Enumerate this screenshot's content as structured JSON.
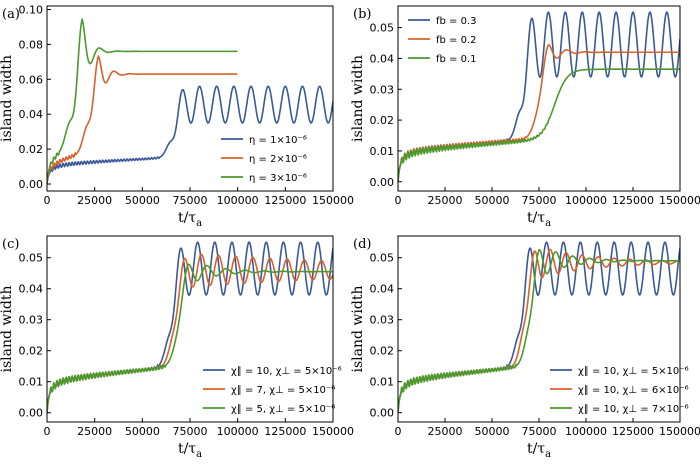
{
  "colors": {
    "blue": "#3b5998",
    "orange": "#d9622b",
    "green": "#4a9a2c"
  },
  "chart_data": [
    {
      "panel": "(a)",
      "type": "line",
      "xlabel": "t/τa",
      "ylabel": "island width",
      "xlim": [
        0,
        150000
      ],
      "ylim": [
        -0.004,
        0.102
      ],
      "xticks": [
        "0",
        "25000",
        "50000",
        "75000",
        "100000",
        "125000",
        "150000"
      ],
      "yticks": [
        "0.00",
        "0.02",
        "0.04",
        "0.06",
        "0.08",
        "0.10"
      ],
      "legend_position": "bottom-right",
      "series": [
        {
          "name": "η = 1×10⁻⁶",
          "color": "blue",
          "type": "sat_osc",
          "osc_start": 5000,
          "t_up": 71000,
          "sat": 0.0455,
          "amp": 0.0105,
          "period": 9000,
          "w0": 0.0118,
          "slope": 5.5e-08,
          "t_end": 150000
        },
        {
          "name": "η = 2×10⁻⁶",
          "color": "orange",
          "type": "sat_damped",
          "osc_start": 3000,
          "t_up": 27000,
          "sat": 0.063,
          "amp": 0.013,
          "period": 8500,
          "decay": 4000,
          "w0": 0.013,
          "slope": 2.8e-07,
          "t_end": 100000
        },
        {
          "name": "η = 3×10⁻⁶",
          "color": "green",
          "type": "sat_damped",
          "osc_start": 2000,
          "t_up": 18500,
          "sat": 0.076,
          "amp": 0.022,
          "period": 9500,
          "decay": 3800,
          "w0": 0.016,
          "slope": 6e-07,
          "t_end": 100000
        }
      ]
    },
    {
      "panel": "(b)",
      "type": "line",
      "xlabel": "t/τa",
      "ylabel": "island width",
      "xlim": [
        0,
        150000
      ],
      "ylim": [
        -0.003,
        0.057
      ],
      "xticks": [
        "0",
        "25000",
        "50000",
        "75000",
        "100000",
        "125000",
        "150000"
      ],
      "yticks": [
        "0.00",
        "0.01",
        "0.02",
        "0.03",
        "0.04",
        "0.05"
      ],
      "legend_position": "top-left",
      "series": [
        {
          "name": "fb = 0.3",
          "color": "blue",
          "type": "sat_osc",
          "osc_start": 5000,
          "t_up": 71000,
          "sat": 0.0445,
          "amp": 0.0105,
          "period": 9000,
          "w0": 0.0105,
          "slope": 5e-08,
          "t_end": 150000
        },
        {
          "name": "fb = 0.2",
          "color": "orange",
          "type": "sat_damped",
          "osc_start": 4000,
          "t_up": 80000,
          "sat": 0.042,
          "amp": 0.004,
          "period": 10000,
          "decay": 6000,
          "w0": 0.0105,
          "slope": 5e-08,
          "t_end": 150000
        },
        {
          "name": "fb = 0.1",
          "color": "green",
          "type": "sat_smooth",
          "osc_start": 3000,
          "t_up": 93000,
          "sat": 0.0365,
          "w0": 0.0102,
          "slope": 4.6e-08,
          "t_end": 150000
        }
      ]
    },
    {
      "panel": "(c)",
      "type": "line",
      "xlabel": "t/τa",
      "ylabel": "island width",
      "xlim": [
        0,
        150000
      ],
      "ylim": [
        -0.003,
        0.057
      ],
      "xticks": [
        "0",
        "25000",
        "50000",
        "75000",
        "100000",
        "125000",
        "150000"
      ],
      "yticks": [
        "0.00",
        "0.01",
        "0.02",
        "0.03",
        "0.04",
        "0.05"
      ],
      "legend_position": "bottom-right",
      "series": [
        {
          "name": "χ∥ = 10, χ⊥ = 5×10⁻⁶",
          "color": "blue",
          "type": "sat_osc",
          "osc_start": 5000,
          "t_up": 70000,
          "sat": 0.0465,
          "amp": 0.0085,
          "period": 9000,
          "w0": 0.011,
          "slope": 6e-08,
          "t_end": 150000
        },
        {
          "name": "χ∥ = 7, χ⊥ = 5×10⁻⁶",
          "color": "orange",
          "type": "sat_osc_decay",
          "osc_start": 5000,
          "t_up": 72000,
          "sat": 0.046,
          "amp": 0.0055,
          "period": 9000,
          "decay": 120000,
          "w0": 0.011,
          "slope": 6e-08,
          "t_end": 150000
        },
        {
          "name": "χ∥ = 5, χ⊥ = 5×10⁻⁶",
          "color": "green",
          "type": "sat_damped",
          "osc_start": 4000,
          "t_up": 74000,
          "sat": 0.0455,
          "amp": 0.004,
          "period": 10000,
          "decay": 14000,
          "w0": 0.011,
          "slope": 6e-08,
          "t_end": 150000
        }
      ]
    },
    {
      "panel": "(d)",
      "type": "line",
      "xlabel": "t/τa",
      "ylabel": "island width",
      "xlim": [
        0,
        150000
      ],
      "ylim": [
        -0.003,
        0.057
      ],
      "xticks": [
        "0",
        "25000",
        "50000",
        "75000",
        "100000",
        "125000",
        "150000"
      ],
      "yticks": [
        "0.00",
        "0.01",
        "0.02",
        "0.03",
        "0.04",
        "0.05"
      ],
      "legend_position": "bottom-right",
      "series": [
        {
          "name": "χ∥ = 10, χ⊥ = 5×10⁻⁶",
          "color": "blue",
          "type": "sat_osc",
          "osc_start": 5000,
          "t_up": 70000,
          "sat": 0.0465,
          "amp": 0.0085,
          "period": 9000,
          "w0": 0.011,
          "slope": 6e-08,
          "t_end": 150000
        },
        {
          "name": "χ∥ = 10, χ⊥ = 6×10⁻⁶",
          "color": "orange",
          "type": "sat_damped",
          "osc_start": 4000,
          "t_up": 72500,
          "sat": 0.0485,
          "amp": 0.0055,
          "period": 8500,
          "decay": 30000,
          "w0": 0.011,
          "slope": 6e-08,
          "t_end": 150000
        },
        {
          "name": "χ∥ = 10, χ⊥ = 7×10⁻⁶",
          "color": "green",
          "type": "sat_damped",
          "osc_start": 4000,
          "t_up": 75000,
          "sat": 0.049,
          "amp": 0.0055,
          "period": 9000,
          "decay": 14000,
          "w0": 0.011,
          "slope": 6e-08,
          "t_end": 150000
        }
      ]
    }
  ]
}
